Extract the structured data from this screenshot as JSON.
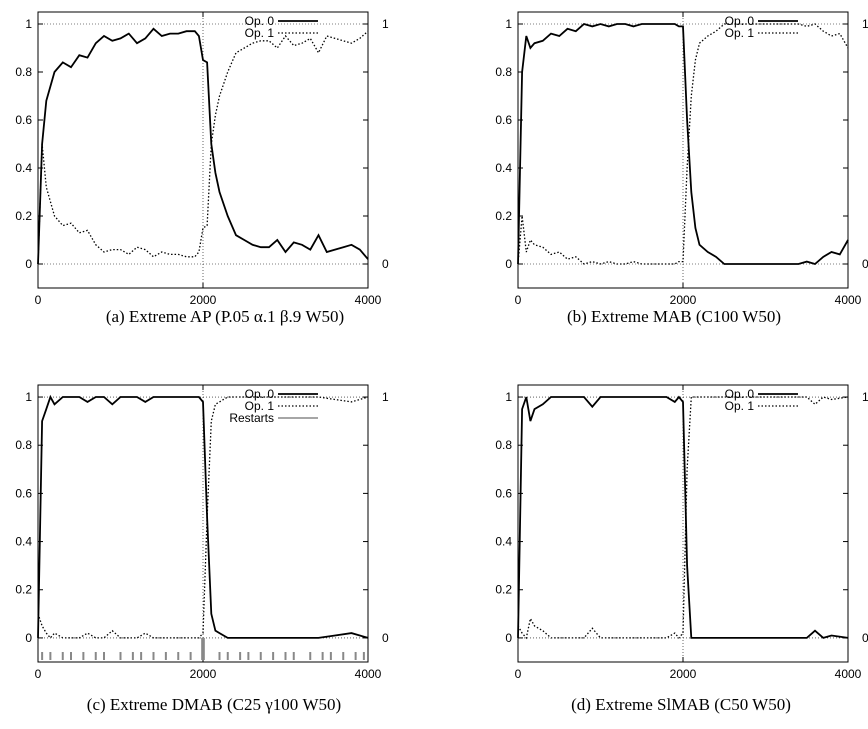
{
  "chart_data": [
    {
      "type": "line",
      "caption": "(a) Extreme AP (P.05 α.1 β.9 W50)",
      "xlim": [
        0,
        4000
      ],
      "ylim": [
        -0.1,
        1.05
      ],
      "x_ticks": [
        "0",
        "2000",
        "4000"
      ],
      "y_ticks": [
        "0",
        "0.2",
        "0.4",
        "0.6",
        "0.8",
        "1"
      ],
      "y2_ticks": [
        "0",
        "1"
      ],
      "grid": "dotted reference lines at y=0, y=1 and x=2000",
      "legend_position": "top-right",
      "series": [
        {
          "name": "Op. 0",
          "style": "solid",
          "x": [
            0,
            50,
            100,
            200,
            300,
            400,
            500,
            600,
            700,
            800,
            900,
            1000,
            1100,
            1200,
            1300,
            1400,
            1500,
            1600,
            1700,
            1800,
            1900,
            1950,
            2000,
            2050,
            2100,
            2150,
            2200,
            2300,
            2400,
            2500,
            2600,
            2700,
            2800,
            2900,
            3000,
            3100,
            3200,
            3300,
            3400,
            3500,
            3600,
            3700,
            3800,
            3900,
            4000
          ],
          "y": [
            0.0,
            0.5,
            0.68,
            0.8,
            0.84,
            0.82,
            0.87,
            0.86,
            0.92,
            0.95,
            0.93,
            0.94,
            0.96,
            0.92,
            0.94,
            0.98,
            0.95,
            0.96,
            0.96,
            0.97,
            0.97,
            0.95,
            0.85,
            0.84,
            0.5,
            0.38,
            0.3,
            0.2,
            0.12,
            0.1,
            0.08,
            0.07,
            0.07,
            0.1,
            0.05,
            0.09,
            0.08,
            0.06,
            0.12,
            0.05,
            0.06,
            0.07,
            0.08,
            0.06,
            0.02
          ]
        },
        {
          "name": "Op. 1",
          "style": "dotted",
          "x": [
            0,
            50,
            100,
            200,
            300,
            400,
            500,
            600,
            700,
            800,
            900,
            1000,
            1100,
            1200,
            1300,
            1400,
            1500,
            1600,
            1700,
            1800,
            1900,
            1950,
            2000,
            2050,
            2100,
            2150,
            2200,
            2300,
            2400,
            2500,
            2600,
            2700,
            2800,
            2900,
            3000,
            3100,
            3200,
            3300,
            3400,
            3500,
            3600,
            3700,
            3800,
            3900,
            4000
          ],
          "y": [
            0.0,
            0.5,
            0.32,
            0.2,
            0.16,
            0.17,
            0.13,
            0.14,
            0.08,
            0.05,
            0.06,
            0.06,
            0.04,
            0.07,
            0.06,
            0.03,
            0.05,
            0.04,
            0.04,
            0.03,
            0.03,
            0.05,
            0.15,
            0.16,
            0.5,
            0.62,
            0.7,
            0.8,
            0.88,
            0.9,
            0.92,
            0.93,
            0.93,
            0.9,
            0.95,
            0.91,
            0.92,
            0.94,
            0.88,
            0.95,
            0.94,
            0.93,
            0.92,
            0.94,
            0.97
          ]
        }
      ]
    },
    {
      "type": "line",
      "caption": "(b) Extreme MAB (C100 W50)",
      "xlim": [
        0,
        4000
      ],
      "ylim": [
        -0.1,
        1.05
      ],
      "x_ticks": [
        "0",
        "2000",
        "4000"
      ],
      "y_ticks": [
        "0",
        "0.2",
        "0.4",
        "0.6",
        "0.8",
        "1"
      ],
      "y2_ticks": [
        "0",
        "1"
      ],
      "grid": "dotted reference lines at y=0, y=1 and x=2000",
      "legend_position": "top-right",
      "series": [
        {
          "name": "Op. 0",
          "style": "solid",
          "x": [
            0,
            50,
            100,
            150,
            200,
            300,
            400,
            500,
            600,
            700,
            800,
            900,
            1000,
            1100,
            1200,
            1300,
            1400,
            1500,
            1600,
            1700,
            1800,
            1900,
            1950,
            2000,
            2050,
            2100,
            2150,
            2200,
            2300,
            2400,
            2500,
            2600,
            2800,
            3000,
            3200,
            3400,
            3500,
            3600,
            3700,
            3800,
            3900,
            4000
          ],
          "y": [
            0.0,
            0.8,
            0.95,
            0.9,
            0.92,
            0.93,
            0.96,
            0.95,
            0.98,
            0.97,
            1.0,
            0.99,
            1.0,
            0.99,
            1.0,
            1.0,
            0.99,
            1.0,
            1.0,
            1.0,
            1.0,
            1.0,
            0.99,
            0.99,
            0.6,
            0.3,
            0.15,
            0.08,
            0.05,
            0.03,
            0.0,
            0.0,
            0.0,
            0.0,
            0.0,
            0.0,
            0.01,
            0.0,
            0.03,
            0.05,
            0.04,
            0.1
          ]
        },
        {
          "name": "Op. 1",
          "style": "dotted",
          "x": [
            0,
            50,
            100,
            150,
            200,
            300,
            400,
            500,
            600,
            700,
            800,
            900,
            1000,
            1100,
            1200,
            1300,
            1400,
            1500,
            1600,
            1700,
            1800,
            1900,
            1950,
            2000,
            2050,
            2100,
            2150,
            2200,
            2300,
            2400,
            2500,
            2600,
            2800,
            3000,
            3200,
            3400,
            3500,
            3600,
            3700,
            3800,
            3900,
            4000
          ],
          "y": [
            0.0,
            0.2,
            0.05,
            0.1,
            0.08,
            0.07,
            0.04,
            0.05,
            0.02,
            0.03,
            0.0,
            0.01,
            0.0,
            0.01,
            0.0,
            0.0,
            0.01,
            0.0,
            0.0,
            0.0,
            0.0,
            0.0,
            0.01,
            0.01,
            0.4,
            0.7,
            0.85,
            0.92,
            0.95,
            0.97,
            1.0,
            1.0,
            1.0,
            1.0,
            1.0,
            1.0,
            0.99,
            1.0,
            0.97,
            0.95,
            0.96,
            0.9
          ]
        }
      ]
    },
    {
      "type": "line",
      "caption": "(c) Extreme DMAB (C25 γ100 W50)",
      "xlim": [
        0,
        4000
      ],
      "ylim": [
        -0.1,
        1.05
      ],
      "x_ticks": [
        "0",
        "2000",
        "4000"
      ],
      "y_ticks": [
        "0",
        "0.2",
        "0.4",
        "0.6",
        "0.8",
        "1"
      ],
      "y2_ticks": [
        "0",
        "1"
      ],
      "grid": "dotted reference lines at y=0, y=1 and x=2000",
      "legend_position": "top-right",
      "series": [
        {
          "name": "Op. 0",
          "style": "solid",
          "x": [
            0,
            50,
            100,
            150,
            200,
            300,
            400,
            500,
            600,
            700,
            800,
            900,
            1000,
            1100,
            1200,
            1300,
            1400,
            1500,
            1600,
            1700,
            1800,
            1900,
            1950,
            2000,
            2050,
            2100,
            2150,
            2200,
            2300,
            2400,
            2600,
            2800,
            3000,
            3200,
            3400,
            3600,
            3800,
            4000
          ],
          "y": [
            0.0,
            0.9,
            0.95,
            1.0,
            0.97,
            1.0,
            1.0,
            1.0,
            0.98,
            1.0,
            1.0,
            0.97,
            1.0,
            1.0,
            1.0,
            0.98,
            1.0,
            1.0,
            1.0,
            1.0,
            1.0,
            1.0,
            1.0,
            0.98,
            0.5,
            0.1,
            0.03,
            0.02,
            0.0,
            0.0,
            0.0,
            0.0,
            0.0,
            0.0,
            0.0,
            0.01,
            0.02,
            0.0
          ]
        },
        {
          "name": "Op. 1",
          "style": "dotted",
          "x": [
            0,
            50,
            100,
            150,
            200,
            300,
            400,
            500,
            600,
            700,
            800,
            900,
            1000,
            1100,
            1200,
            1300,
            1400,
            1500,
            1600,
            1700,
            1800,
            1900,
            1950,
            2000,
            2050,
            2100,
            2150,
            2200,
            2300,
            2400,
            2600,
            2800,
            3000,
            3200,
            3400,
            3600,
            3800,
            4000
          ],
          "y": [
            0.1,
            0.05,
            0.02,
            0.0,
            0.02,
            0.0,
            0.0,
            0.0,
            0.02,
            0.0,
            0.0,
            0.03,
            0.0,
            0.0,
            0.0,
            0.02,
            0.0,
            0.0,
            0.0,
            0.0,
            0.0,
            0.0,
            0.0,
            0.02,
            0.5,
            0.9,
            0.97,
            0.98,
            1.0,
            1.0,
            1.0,
            1.0,
            1.0,
            1.0,
            1.0,
            0.99,
            0.98,
            1.0
          ]
        },
        {
          "name": "Restarts",
          "style": "gray-ticks",
          "x": [
            50,
            150,
            300,
            400,
            550,
            700,
            800,
            1000,
            1150,
            1250,
            1400,
            1550,
            1700,
            1850,
            1990,
            2000,
            2010,
            2200,
            2300,
            2450,
            2550,
            2700,
            2850,
            3000,
            3100,
            3300,
            3450,
            3550,
            3700,
            3850,
            3950
          ]
        }
      ]
    },
    {
      "type": "line",
      "caption": "(d) Extreme SlMAB (C50 W50)",
      "xlim": [
        0,
        4000
      ],
      "ylim": [
        -0.1,
        1.05
      ],
      "x_ticks": [
        "0",
        "2000",
        "4000"
      ],
      "y_ticks": [
        "0",
        "0.2",
        "0.4",
        "0.6",
        "0.8",
        "1"
      ],
      "y2_ticks": [
        "0",
        "1"
      ],
      "grid": "dotted reference lines at y=0, y=1 and x=2000",
      "legend_position": "top-right",
      "series": [
        {
          "name": "Op. 0",
          "style": "solid",
          "x": [
            0,
            50,
            100,
            150,
            200,
            300,
            400,
            500,
            600,
            700,
            800,
            900,
            1000,
            1100,
            1200,
            1300,
            1400,
            1500,
            1600,
            1700,
            1800,
            1900,
            1950,
            2000,
            2050,
            2100,
            2200,
            2400,
            2600,
            2800,
            3000,
            3200,
            3400,
            3500,
            3600,
            3700,
            3800,
            4000
          ],
          "y": [
            0.0,
            0.95,
            1.0,
            0.9,
            0.95,
            0.97,
            1.0,
            1.0,
            1.0,
            1.0,
            1.0,
            0.96,
            1.0,
            1.0,
            1.0,
            1.0,
            1.0,
            1.0,
            1.0,
            1.0,
            1.0,
            0.98,
            1.0,
            0.98,
            0.3,
            0.0,
            0.0,
            0.0,
            0.0,
            0.0,
            0.0,
            0.0,
            0.0,
            0.0,
            0.03,
            0.0,
            0.01,
            0.0
          ]
        },
        {
          "name": "Op. 1",
          "style": "dotted",
          "x": [
            0,
            50,
            100,
            150,
            200,
            300,
            400,
            500,
            600,
            700,
            800,
            900,
            1000,
            1100,
            1200,
            1300,
            1400,
            1500,
            1600,
            1700,
            1800,
            1900,
            1950,
            2000,
            2050,
            2100,
            2200,
            2400,
            2600,
            2800,
            3000,
            3200,
            3400,
            3500,
            3600,
            3700,
            3800,
            4000
          ],
          "y": [
            0.05,
            0.02,
            0.0,
            0.08,
            0.05,
            0.03,
            0.0,
            0.0,
            0.0,
            0.0,
            0.0,
            0.04,
            0.0,
            0.0,
            0.0,
            0.0,
            0.0,
            0.0,
            0.0,
            0.0,
            0.0,
            0.02,
            0.0,
            0.02,
            0.7,
            1.0,
            1.0,
            1.0,
            1.0,
            1.0,
            1.0,
            1.0,
            1.0,
            1.0,
            0.97,
            1.0,
            0.99,
            1.0
          ]
        }
      ]
    }
  ]
}
